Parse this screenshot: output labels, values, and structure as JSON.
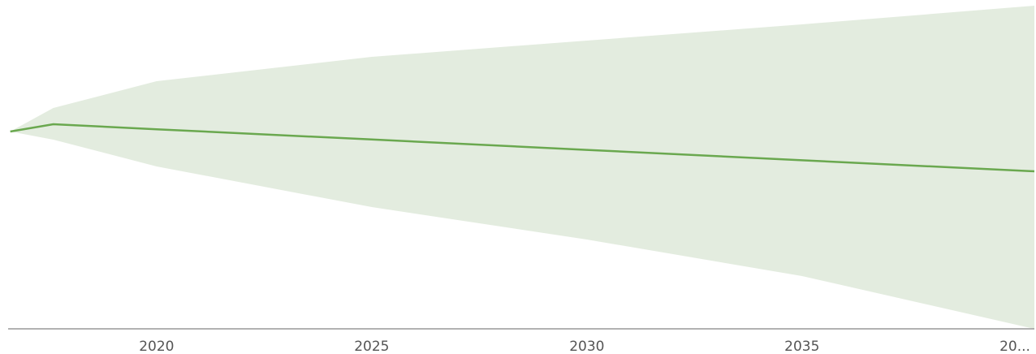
{
  "chart_data": {
    "type": "line",
    "x": [
      2016.6,
      2017.6,
      2020,
      2025,
      2030,
      2035,
      2040.4
    ],
    "values": [
      60.75,
      63,
      61.45,
      58.3,
      55.1,
      51.9,
      48.5
    ],
    "lower": [
      60.75,
      58.25,
      50,
      37.5,
      27.5,
      16.25,
      0
    ],
    "upper": [
      60.75,
      68,
      76.25,
      83.75,
      88.75,
      93.75,
      99.5
    ],
    "color": "#6aa84f",
    "band_color": "#e3ecdf",
    "xlim": [
      2016.55,
      2040.4
    ],
    "ylim": [
      0,
      100
    ],
    "xticks": [
      2020,
      2025,
      2030,
      2035,
      {
        "value": 2040,
        "label": "20..."
      }
    ]
  }
}
